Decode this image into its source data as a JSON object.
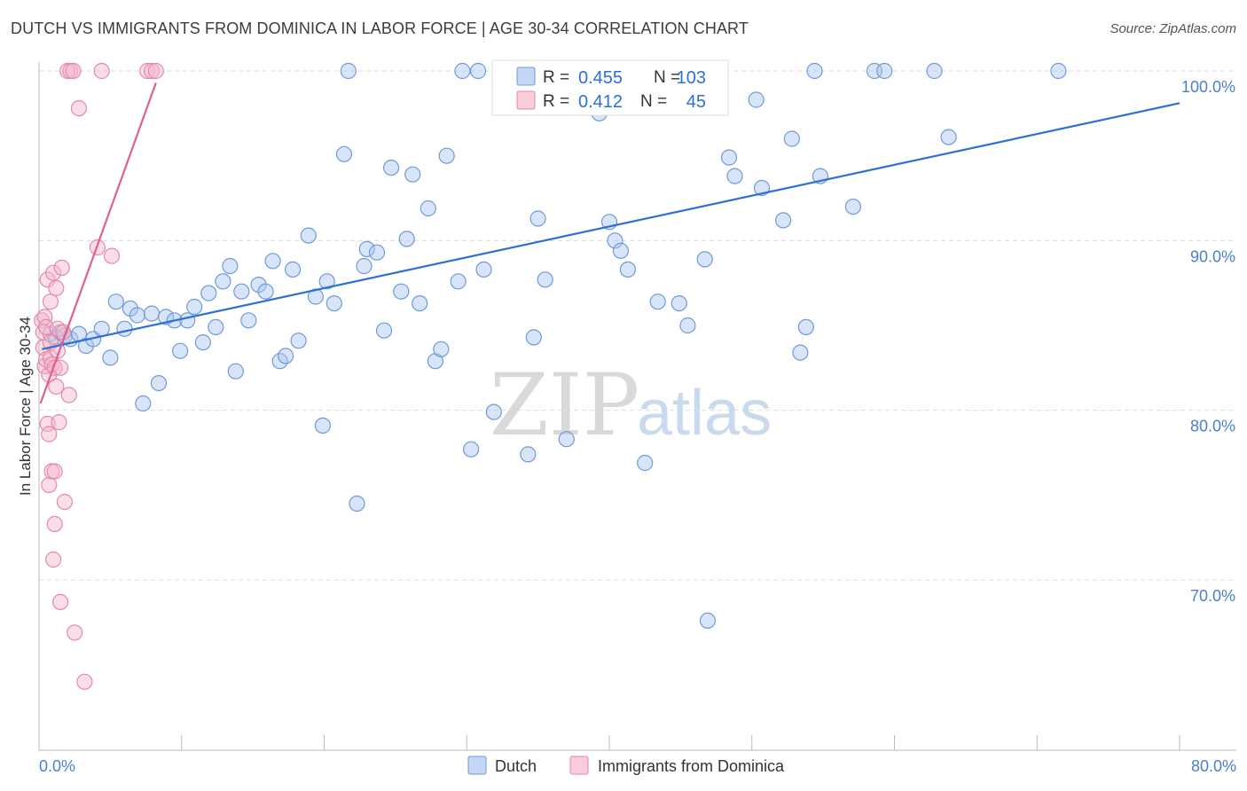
{
  "header": {
    "title": "DUTCH VS IMMIGRANTS FROM DOMINICA IN LABOR FORCE | AGE 30-34 CORRELATION CHART",
    "source": "Source: ZipAtlas.com"
  },
  "colors": {
    "dutch_fill": "#a9c6ef",
    "dutch_stroke": "#6f9ad8",
    "dutch_line": "#2e6fd6",
    "dominica_fill": "#f5b6c9",
    "dominica_stroke": "#e58aa6",
    "dominica_line": "#e0608c",
    "grid": "#dddddd",
    "axis_text": "#4a7fd0"
  },
  "legend": {
    "r_label": "R =",
    "n_label": "N =",
    "dutch_r": "0.455",
    "dutch_n": "103",
    "dominica_r": "0.412",
    "dominica_n": "45"
  },
  "watermark": {
    "zip": "ZIP",
    "atlas": "atlas"
  },
  "chart_data": {
    "type": "scatter",
    "title": "DUTCH VS IMMIGRANTS FROM DOMINICA IN LABOR FORCE | AGE 30-34 CORRELATION CHART",
    "xlabel": "",
    "ylabel": "In Labor Force | Age 30-34",
    "xlim": [
      0,
      80
    ],
    "ylim": [
      60.5,
      101.5
    ],
    "x_tick_labels": [
      "0.0%",
      "80.0%"
    ],
    "y_ticks": [
      70,
      80,
      90,
      100
    ],
    "y_tick_labels": [
      "70.0%",
      "80.0%",
      "90.0%",
      "100.0%"
    ],
    "grid": true,
    "series": [
      {
        "name": "Dutch",
        "r": 0.455,
        "n": 103,
        "trend": {
          "x": [
            0.2,
            80
          ],
          "y": [
            83.6,
            98.1
          ]
        },
        "points": [
          [
            0.8,
            84.5
          ],
          [
            1.2,
            84.3
          ],
          [
            1.5,
            84.6
          ],
          [
            1.8,
            84.4
          ],
          [
            2.2,
            84.2
          ],
          [
            2.8,
            84.5
          ],
          [
            3.3,
            83.8
          ],
          [
            3.8,
            84.2
          ],
          [
            4.4,
            84.8
          ],
          [
            5.0,
            83.1
          ],
          [
            5.4,
            86.4
          ],
          [
            6.0,
            84.8
          ],
          [
            6.4,
            86.0
          ],
          [
            6.9,
            85.6
          ],
          [
            7.3,
            80.4
          ],
          [
            7.9,
            85.7
          ],
          [
            8.4,
            81.6
          ],
          [
            8.9,
            85.5
          ],
          [
            9.5,
            85.3
          ],
          [
            9.9,
            83.5
          ],
          [
            10.4,
            85.3
          ],
          [
            10.9,
            86.1
          ],
          [
            11.5,
            84.0
          ],
          [
            11.9,
            86.9
          ],
          [
            12.4,
            84.9
          ],
          [
            12.9,
            87.6
          ],
          [
            13.4,
            88.5
          ],
          [
            13.8,
            82.3
          ],
          [
            14.2,
            87.0
          ],
          [
            14.7,
            85.3
          ],
          [
            15.4,
            87.4
          ],
          [
            15.9,
            87.0
          ],
          [
            16.4,
            88.8
          ],
          [
            16.9,
            82.9
          ],
          [
            17.3,
            83.2
          ],
          [
            17.8,
            88.3
          ],
          [
            18.2,
            84.1
          ],
          [
            18.9,
            90.3
          ],
          [
            19.4,
            86.7
          ],
          [
            19.9,
            79.1
          ],
          [
            20.2,
            87.6
          ],
          [
            20.7,
            86.3
          ],
          [
            21.4,
            95.1
          ],
          [
            21.7,
            100.0
          ],
          [
            22.3,
            74.5
          ],
          [
            22.8,
            88.5
          ],
          [
            23.0,
            89.5
          ],
          [
            23.7,
            89.3
          ],
          [
            24.2,
            84.7
          ],
          [
            24.7,
            94.3
          ],
          [
            25.4,
            87.0
          ],
          [
            25.8,
            90.1
          ],
          [
            26.2,
            93.9
          ],
          [
            26.7,
            86.3
          ],
          [
            27.3,
            91.9
          ],
          [
            27.8,
            82.9
          ],
          [
            28.2,
            83.6
          ],
          [
            28.6,
            95.0
          ],
          [
            29.4,
            87.6
          ],
          [
            29.7,
            100.0
          ],
          [
            30.3,
            77.7
          ],
          [
            30.8,
            100.0
          ],
          [
            31.2,
            88.3
          ],
          [
            31.9,
            79.9
          ],
          [
            32.5,
            100.0
          ],
          [
            33.5,
            100.0
          ],
          [
            34.3,
            77.4
          ],
          [
            34.7,
            84.3
          ],
          [
            35.0,
            91.3
          ],
          [
            35.5,
            87.7
          ],
          [
            36.5,
            100.0
          ],
          [
            37.0,
            78.3
          ],
          [
            39.3,
            97.5
          ],
          [
            39.5,
            100.0
          ],
          [
            40.0,
            91.1
          ],
          [
            40.4,
            90.0
          ],
          [
            40.8,
            89.4
          ],
          [
            41.3,
            88.3
          ],
          [
            42.5,
            76.9
          ],
          [
            43.4,
            86.4
          ],
          [
            43.9,
            100.0
          ],
          [
            44.9,
            86.3
          ],
          [
            45.5,
            85.0
          ],
          [
            46.2,
            100.0
          ],
          [
            46.7,
            88.9
          ],
          [
            46.9,
            67.6
          ],
          [
            47.6,
            100.0
          ],
          [
            48.4,
            94.9
          ],
          [
            48.8,
            93.8
          ],
          [
            50.3,
            98.3
          ],
          [
            50.7,
            93.1
          ],
          [
            52.2,
            91.2
          ],
          [
            52.8,
            96.0
          ],
          [
            53.4,
            83.4
          ],
          [
            53.8,
            84.9
          ],
          [
            54.4,
            100.0
          ],
          [
            54.8,
            93.8
          ],
          [
            57.1,
            92.0
          ],
          [
            58.6,
            100.0
          ],
          [
            59.3,
            100.0
          ],
          [
            62.8,
            100.0
          ],
          [
            63.8,
            96.1
          ],
          [
            71.5,
            100.0
          ]
        ]
      },
      {
        "name": "Immigrants from Dominica",
        "r": 0.412,
        "n": 45,
        "trend": {
          "x": [
            0.1,
            8.2
          ],
          "y": [
            80.4,
            99.3
          ]
        },
        "points": [
          [
            0.2,
            85.3
          ],
          [
            0.3,
            84.6
          ],
          [
            0.3,
            83.7
          ],
          [
            0.4,
            82.6
          ],
          [
            0.4,
            85.5
          ],
          [
            0.5,
            83.0
          ],
          [
            0.5,
            84.9
          ],
          [
            0.6,
            87.7
          ],
          [
            0.6,
            79.2
          ],
          [
            0.7,
            82.1
          ],
          [
            0.7,
            75.6
          ],
          [
            0.7,
            78.6
          ],
          [
            0.8,
            83.1
          ],
          [
            0.8,
            86.4
          ],
          [
            0.8,
            84.0
          ],
          [
            0.9,
            76.4
          ],
          [
            0.9,
            82.7
          ],
          [
            1.0,
            71.2
          ],
          [
            1.0,
            88.1
          ],
          [
            1.1,
            82.5
          ],
          [
            1.1,
            76.4
          ],
          [
            1.1,
            73.3
          ],
          [
            1.2,
            87.2
          ],
          [
            1.2,
            81.4
          ],
          [
            1.3,
            84.8
          ],
          [
            1.3,
            83.5
          ],
          [
            1.4,
            79.3
          ],
          [
            1.5,
            82.5
          ],
          [
            1.5,
            68.7
          ],
          [
            1.6,
            88.4
          ],
          [
            1.7,
            84.6
          ],
          [
            1.8,
            74.6
          ],
          [
            2.0,
            100.0
          ],
          [
            2.1,
            80.9
          ],
          [
            2.2,
            100.0
          ],
          [
            2.4,
            100.0
          ],
          [
            2.5,
            66.9
          ],
          [
            2.8,
            97.8
          ],
          [
            3.2,
            64.0
          ],
          [
            4.1,
            89.6
          ],
          [
            4.4,
            100.0
          ],
          [
            5.1,
            89.1
          ],
          [
            7.6,
            100.0
          ],
          [
            7.9,
            100.0
          ],
          [
            8.2,
            100.0
          ]
        ]
      }
    ]
  },
  "bottom_legend": {
    "dutch": "Dutch",
    "dominica": "Immigrants from Dominica"
  }
}
